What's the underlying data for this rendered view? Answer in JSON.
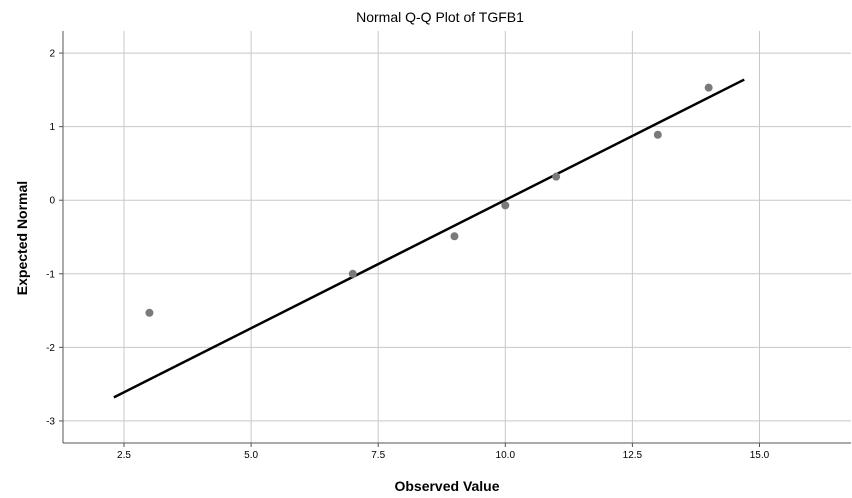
{
  "chart_data": {
    "type": "scatter",
    "title": "Normal Q-Q Plot of TGFB1",
    "xlabel": "Observed Value",
    "ylabel": "Expected Normal",
    "xlim": [
      1.3,
      16.8
    ],
    "ylim": [
      -3.3,
      2.3
    ],
    "xticks": [
      2.5,
      5.0,
      7.5,
      10.0,
      12.5,
      15.0
    ],
    "xtick_labels": [
      "2.5",
      "5.0",
      "7.5",
      "10.0",
      "12.5",
      "15.0"
    ],
    "yticks": [
      2,
      1,
      0,
      -1,
      -2,
      -3
    ],
    "ytick_labels": [
      "2",
      "1",
      "0",
      "-1",
      "-2",
      "-3"
    ],
    "grid": true,
    "series": [
      {
        "points": [
          {
            "x": 3.0,
            "y": -1.53
          },
          {
            "x": 7.0,
            "y": -1.0
          },
          {
            "x": 9.0,
            "y": -0.49
          },
          {
            "x": 10.0,
            "y": -0.07
          },
          {
            "x": 11.0,
            "y": 0.32
          },
          {
            "x": 13.0,
            "y": 0.89
          },
          {
            "x": 14.0,
            "y": 1.53
          }
        ],
        "color": "#7a7a7a"
      }
    ],
    "reference_line": {
      "x": [
        2.3,
        14.7
      ],
      "y": [
        -2.68,
        1.64
      ],
      "color": "#000000"
    }
  }
}
